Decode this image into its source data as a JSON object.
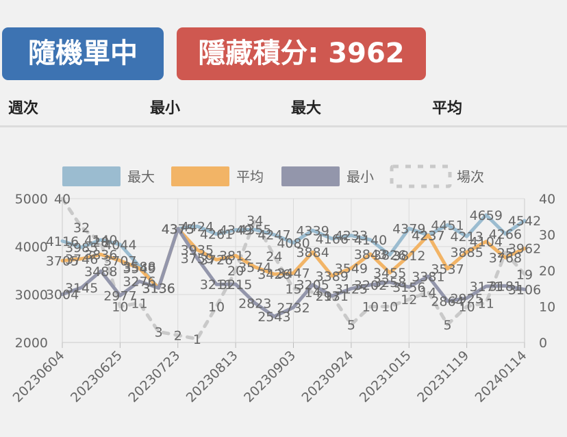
{
  "badges": {
    "mode": "隨機單中",
    "score": "隱藏積分: 3962"
  },
  "table_header": [
    "週次",
    "最小",
    "最大",
    "平均"
  ],
  "colors": {
    "max": "#9bbcd0",
    "avg": "#f2b466",
    "min": "#9396ab",
    "count": "#c9c9c9",
    "mode_badge": "#3d73b2",
    "score_badge": "#cf5850"
  },
  "chart_data": {
    "type": "line",
    "legend": [
      "最大",
      "平均",
      "最小",
      "場次"
    ],
    "legend_position": "top",
    "x_ticks": [
      "20230604",
      "20230625",
      "20230723",
      "20230813",
      "20230903",
      "20230924",
      "20231015",
      "20231119",
      "20240114"
    ],
    "y_left": {
      "ticks": [
        "5000",
        "4000",
        "3000",
        "2000"
      ],
      "range": [
        2000,
        5000
      ]
    },
    "y_right": {
      "ticks": [
        "40",
        "30",
        "20",
        "10",
        "0"
      ],
      "range": [
        0,
        40
      ]
    },
    "grid": true,
    "series": [
      {
        "name": "最大",
        "axis": "left",
        "values": [
          4116,
          3985,
          4140,
          4044,
          3588,
          3136,
          4375,
          4424,
          4261,
          4349,
          4355,
          4247,
          4080,
          4339,
          4166,
          4233,
          4140,
          3826,
          4379,
          4237,
          4451,
          4213,
          4659,
          4266,
          4542
        ]
      },
      {
        "name": "平均",
        "axis": "left",
        "values": [
          3705,
          3746,
          3836,
          3707,
          3549,
          3136,
          4375,
          3935,
          3726,
          3812,
          3574,
          3426,
          3447,
          3884,
          3389,
          3549,
          3843,
          3455,
          3812,
          4237,
          3537,
          3885,
          4104,
          3768,
          3962
        ]
      },
      {
        "name": "最小",
        "axis": "left",
        "values": [
          3004,
          3145,
          3488,
          2977,
          3276,
          3136,
          4375,
          3759,
          3211,
          3215,
          2823,
          2543,
          2732,
          3205,
          2971,
          3125,
          3202,
          3258,
          3156,
          3381,
          2864,
          2925,
          3171,
          3181,
          3106
        ]
      },
      {
        "name": "場次",
        "axis": "right",
        "values": [
          40,
          32,
          28,
          10,
          11,
          3,
          2,
          1,
          10,
          20,
          34,
          24,
          15,
          14,
          13,
          5,
          10,
          10,
          12,
          14,
          5,
          10,
          11,
          25,
          19
        ]
      }
    ]
  }
}
